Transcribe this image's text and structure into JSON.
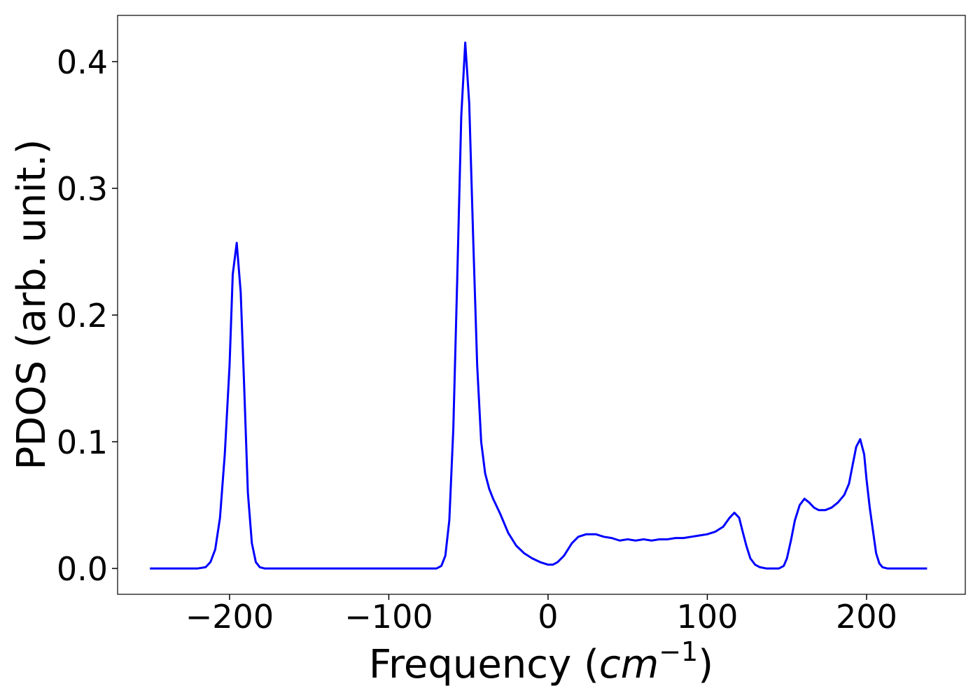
{
  "chart_data": {
    "type": "line",
    "xlabel": {
      "text": "Frequency (",
      "unit": "cm",
      "exponent": "−1",
      "close": ")"
    },
    "ylabel": "PDOS (arb. unit.)",
    "color": "#0000ff",
    "x": [
      -250,
      -220,
      -215,
      -212,
      -209,
      -206,
      -203,
      -200,
      -198,
      -195.5,
      -193,
      -191,
      -188.5,
      -186,
      -183.5,
      -181,
      -178,
      -70,
      -67,
      -64.5,
      -62,
      -59.5,
      -57,
      -54.5,
      -52,
      -49.5,
      -47,
      -44.5,
      -42,
      -39.5,
      -37,
      -34.5,
      -30,
      -25,
      -20,
      -15,
      -10,
      -5,
      0,
      3,
      6,
      10,
      15,
      19,
      24,
      30,
      35,
      40,
      45,
      50,
      55,
      60,
      65,
      70,
      75,
      80,
      85,
      90,
      95,
      100,
      105,
      110,
      114,
      117,
      120,
      122,
      124.5,
      127,
      130,
      133,
      137,
      145,
      148,
      150,
      152.5,
      155,
      158,
      161,
      164,
      167,
      170,
      174,
      178,
      182,
      186,
      189,
      191,
      193.5,
      196,
      198.5,
      200,
      202,
      204,
      206,
      208,
      210,
      213,
      238
    ],
    "values": [
      0,
      0,
      0.001,
      0.005,
      0.015,
      0.04,
      0.09,
      0.16,
      0.232,
      0.257,
      0.218,
      0.15,
      0.06,
      0.02,
      0.005,
      0.001,
      0,
      0,
      0.002,
      0.01,
      0.038,
      0.11,
      0.23,
      0.357,
      0.415,
      0.367,
      0.26,
      0.16,
      0.1,
      0.075,
      0.063,
      0.055,
      0.043,
      0.028,
      0.018,
      0.012,
      0.008,
      0.005,
      0.003,
      0.003,
      0.005,
      0.01,
      0.02,
      0.025,
      0.027,
      0.027,
      0.025,
      0.024,
      0.022,
      0.023,
      0.022,
      0.023,
      0.022,
      0.023,
      0.023,
      0.024,
      0.024,
      0.025,
      0.026,
      0.027,
      0.029,
      0.033,
      0.04,
      0.044,
      0.04,
      0.03,
      0.018,
      0.008,
      0.003,
      0.001,
      0,
      0,
      0.002,
      0.008,
      0.022,
      0.038,
      0.05,
      0.055,
      0.052,
      0.048,
      0.046,
      0.046,
      0.048,
      0.052,
      0.058,
      0.067,
      0.08,
      0.096,
      0.102,
      0.09,
      0.07,
      0.048,
      0.03,
      0.012,
      0.004,
      0.001,
      0,
      0
    ],
    "xlim": [
      -270.3,
      262
    ],
    "ylim": [
      -0.0204,
      0.4365
    ],
    "xticks": [
      {
        "value": -200,
        "label": "−200"
      },
      {
        "value": -100,
        "label": "−100"
      },
      0,
      100,
      200
    ],
    "yticks": [
      {
        "value": 0,
        "label": "0.0"
      },
      0.1,
      0.2,
      0.3,
      0.4
    ]
  }
}
